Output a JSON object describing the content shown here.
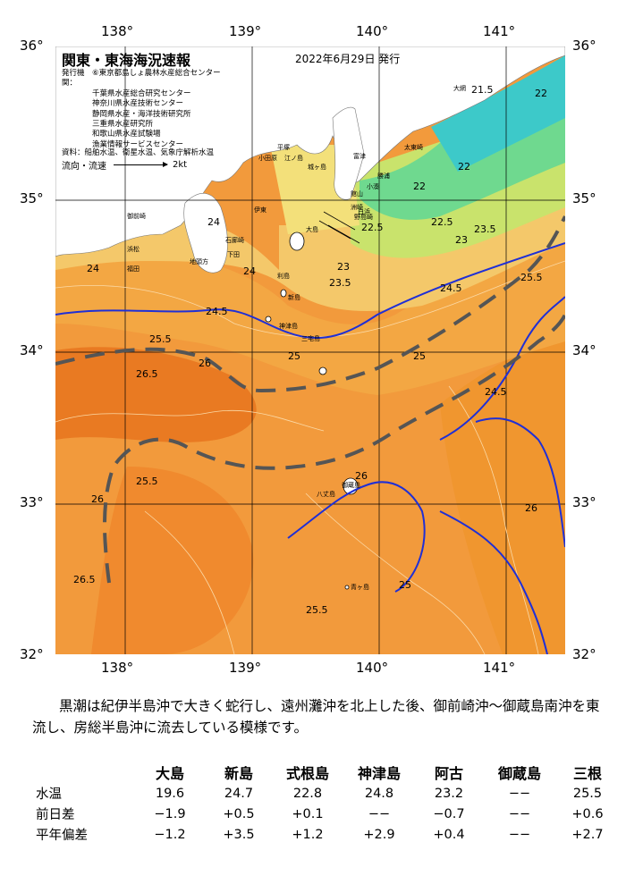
{
  "map": {
    "title": "関東・東海海況速報",
    "date": "2022年6月29日 発行",
    "issuers_label": "発行機関：",
    "issuers": [
      "⑥東京都島しょ農林水産総合センター",
      "千葉県水産総合研究センター",
      "神奈川県水産技術センター",
      "静岡県水産・海洋技術研究所",
      "三重県水産研究所",
      "和歌山県水産試験場",
      "漁業情報サービスセンター"
    ],
    "sources": "資料：船舶水温、衛星水温、気象庁解析水温",
    "flow_label": "流向・流速",
    "flow_scale": "2kt",
    "lon_labels": [
      "138°",
      "139°",
      "140°",
      "141°"
    ],
    "lat_labels": [
      "36°",
      "35°",
      "34°",
      "33°",
      "32°"
    ],
    "place_names": [
      "大網",
      "太東崎",
      "勝浦",
      "小湊",
      "洲崎",
      "平塚",
      "江ノ島",
      "城ヶ島",
      "富津",
      "館山",
      "白浜",
      "野島崎",
      "大島",
      "利島",
      "新島",
      "神津島",
      "三宅島",
      "御蔵島",
      "八丈島",
      "青ヶ島",
      "下田",
      "石廊崎",
      "御前崎",
      "浜松",
      "小田原",
      "伊東",
      "地頭方",
      "福田"
    ],
    "contour_labels": [
      "21.5",
      "22",
      "22",
      "22",
      "22.5",
      "22.5",
      "23",
      "23",
      "23.5",
      "23.5",
      "24",
      "24",
      "24.5",
      "24.5",
      "25",
      "25",
      "25.5",
      "25.5",
      "25.5",
      "25.5",
      "26",
      "26",
      "26",
      "26.5",
      "26.5",
      "26",
      "25",
      "24",
      "24.5"
    ]
  },
  "description": "黒潮は紀伊半島沖で大きく蛇行し、遠州灘沖を北上した後、御前崎沖～御蔵島南沖を東流し、房総半島沖に流去している模様です。",
  "table": {
    "columns": [
      "大島",
      "新島",
      "式根島",
      "神津島",
      "阿古",
      "御蔵島",
      "三根"
    ],
    "rows": [
      {
        "label": "水温",
        "values": [
          "19.6",
          "24.7",
          "22.8",
          "24.8",
          "23.2",
          "−−",
          "25.5"
        ]
      },
      {
        "label": "前日差",
        "values": [
          "−1.9",
          "+0.5",
          "+0.1",
          "−−",
          "−0.7",
          "−−",
          "+0.6"
        ]
      },
      {
        "label": "平年偏差",
        "values": [
          "−1.2",
          "+3.5",
          "+1.2",
          "+2.9",
          "+0.4",
          "−−",
          "+2.7"
        ]
      }
    ]
  }
}
